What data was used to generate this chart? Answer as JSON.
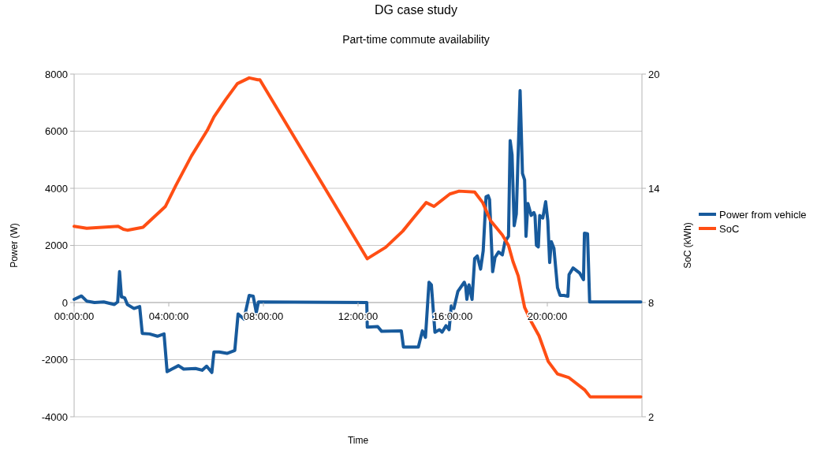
{
  "chart_data": {
    "type": "line",
    "title": "DG case study",
    "subtitle": "Part-time commute availability",
    "xlabel": "Time",
    "ylabel": "Power (W)",
    "y2label": "SoC (kWh)",
    "xlim": [
      0,
      24
    ],
    "xticks": [
      {
        "value": 0,
        "label": "00:00:00"
      },
      {
        "value": 4,
        "label": "04:00:00"
      },
      {
        "value": 8,
        "label": "08:00:00"
      },
      {
        "value": 12,
        "label": "12:00:00"
      },
      {
        "value": 16,
        "label": "16:00:00"
      },
      {
        "value": 20,
        "label": "20:00:00"
      }
    ],
    "ylim": [
      -4000,
      8000
    ],
    "yticks": [
      -4000,
      -2000,
      0,
      2000,
      4000,
      6000,
      8000
    ],
    "y2lim": [
      2,
      20
    ],
    "y2ticks": [
      2,
      8,
      14,
      20
    ],
    "grid": "y",
    "legend": "right",
    "line_style": "solid",
    "series": [
      {
        "name": "Power from vehicle",
        "color": "#175a9c",
        "x": [
          0,
          0.31,
          0.53,
          0.86,
          1.25,
          1.7,
          1.84,
          1.92,
          2.0,
          2.14,
          2.25,
          2.53,
          2.77,
          2.88,
          3.19,
          3.52,
          3.8,
          3.93,
          4.13,
          4.41,
          4.63,
          5.13,
          5.41,
          5.6,
          5.82,
          5.91,
          6.13,
          6.46,
          6.79,
          6.93,
          7.18,
          7.4,
          7.57,
          7.7,
          7.79,
          12.37,
          12.39,
          12.83,
          13.0,
          13.83,
          13.92,
          14.55,
          14.72,
          14.85,
          15.0,
          15.1,
          15.25,
          15.44,
          15.55,
          15.72,
          15.85,
          15.94,
          16.05,
          16.22,
          16.49,
          16.55,
          16.6,
          16.69,
          16.82,
          16.93,
          17.04,
          17.18,
          17.29,
          17.41,
          17.5,
          17.56,
          17.69,
          17.79,
          17.94,
          18.1,
          18.21,
          18.36,
          18.43,
          18.51,
          18.6,
          18.69,
          18.85,
          18.95,
          19.04,
          19.1,
          19.18,
          19.32,
          19.43,
          19.48,
          19.54,
          19.62,
          19.68,
          19.81,
          19.93,
          20.02,
          20.1,
          20.17,
          20.28,
          20.43,
          20.54,
          20.7,
          20.87,
          20.92,
          21.09,
          21.37,
          21.53,
          21.57,
          21.7,
          21.79,
          23.95
        ],
        "values": [
          110,
          230,
          50,
          0,
          20,
          -70,
          20,
          1080,
          200,
          160,
          -70,
          -210,
          -140,
          -1080,
          -1100,
          -1180,
          -1100,
          -2420,
          -2330,
          -2210,
          -2330,
          -2310,
          -2370,
          -2230,
          -2450,
          -1730,
          -1730,
          -1780,
          -1680,
          -400,
          -580,
          250,
          220,
          -350,
          20,
          0,
          -860,
          -840,
          -1010,
          -990,
          -1560,
          -1560,
          -990,
          -1220,
          710,
          620,
          -1040,
          -950,
          -1040,
          -810,
          -950,
          -120,
          -210,
          390,
          710,
          570,
          110,
          620,
          110,
          1540,
          1630,
          1170,
          1810,
          3700,
          3740,
          3600,
          1080,
          1580,
          1770,
          1670,
          2130,
          2320,
          5670,
          5170,
          2690,
          3100,
          7420,
          4520,
          4290,
          2320,
          3470,
          3050,
          3150,
          3050,
          2000,
          1950,
          3050,
          2960,
          3530,
          2870,
          1400,
          2130,
          1900,
          520,
          250,
          250,
          220,
          980,
          1210,
          1030,
          800,
          2430,
          2410,
          20,
          20
        ]
      },
      {
        "name": "SoC",
        "color": "#ff4e14",
        "axis": "y2",
        "x": [
          0,
          0.53,
          1.86,
          2.08,
          2.25,
          2.91,
          3.86,
          4.3,
          4.96,
          5.63,
          5.91,
          6.4,
          6.9,
          7.4,
          7.76,
          7.85,
          12.39,
          13.17,
          13.89,
          14.38,
          14.88,
          15.21,
          15.88,
          16.27,
          16.93,
          17.27,
          17.6,
          18.1,
          18.36,
          18.55,
          18.77,
          19.04,
          19.32,
          19.65,
          20.04,
          20.43,
          20.92,
          21.59,
          21.81,
          23.95
        ],
        "values": [
          12.0,
          11.9,
          12.0,
          11.85,
          11.8,
          11.95,
          13.05,
          14.15,
          15.7,
          17.05,
          17.75,
          18.65,
          19.5,
          19.8,
          19.7,
          19.7,
          10.3,
          10.9,
          11.75,
          12.5,
          13.25,
          13.05,
          13.7,
          13.85,
          13.8,
          13.25,
          12.3,
          11.55,
          11.0,
          10.15,
          9.4,
          7.75,
          7.0,
          6.25,
          4.9,
          4.25,
          4.05,
          3.4,
          3.05,
          3.05
        ]
      }
    ]
  }
}
